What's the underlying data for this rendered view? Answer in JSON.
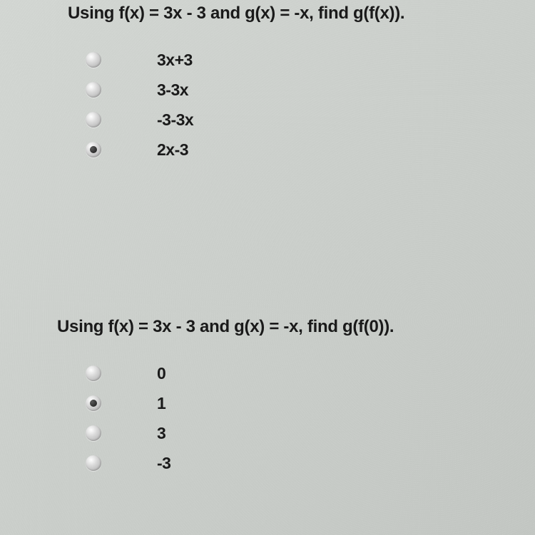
{
  "questions": [
    {
      "prompt": "Using f(x) = 3x - 3 and g(x) = -x, find g(f(x)).",
      "options": [
        {
          "label": "3x+3",
          "selected": false
        },
        {
          "label": "3-3x",
          "selected": false
        },
        {
          "label": "-3-3x",
          "selected": false
        },
        {
          "label": "2x-3",
          "selected": true
        }
      ]
    },
    {
      "prompt": "Using f(x) = 3x - 3 and g(x) = -x, find g(f(0)).",
      "options": [
        {
          "label": "0",
          "selected": false
        },
        {
          "label": "1",
          "selected": true
        },
        {
          "label": "3",
          "selected": false
        },
        {
          "label": "-3",
          "selected": false
        }
      ]
    }
  ],
  "colors": {
    "text": "#1a1a1a",
    "background_start": "#d8dcd8",
    "background_end": "#c8ccc8",
    "radio_light": "#ffffff",
    "radio_dark": "#a8a8a8",
    "radio_dot": "#1a1a1a"
  },
  "typography": {
    "question_fontsize": 24,
    "option_fontsize": 23,
    "font_weight": "bold",
    "font_family": "Arial"
  }
}
